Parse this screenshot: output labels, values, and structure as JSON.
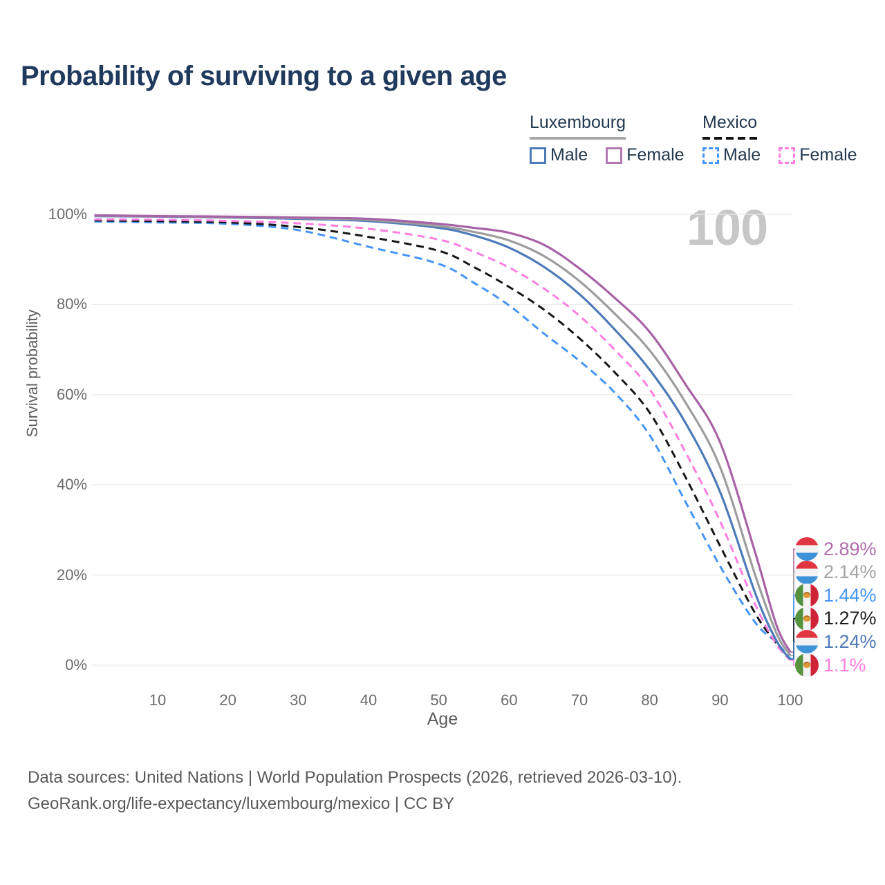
{
  "title": "Probability of surviving to a given age",
  "watermark": "100",
  "legend": {
    "groups": [
      {
        "label": "Luxembourg",
        "line_style": "solid",
        "underline_color": "#a8a8a8",
        "items": [
          {
            "label": "Male",
            "color": "#4d7ab8",
            "dashed": false
          },
          {
            "label": "Female",
            "color": "#b279b2",
            "dashed": false
          }
        ]
      },
      {
        "label": "Mexico",
        "line_style": "dashed",
        "underline_color": "#141414",
        "items": [
          {
            "label": "Male",
            "color": "#4595f7",
            "dashed": true
          },
          {
            "label": "Female",
            "color": "#ff7ee2",
            "dashed": true
          }
        ]
      }
    ]
  },
  "chart_data": {
    "type": "line",
    "title": "Probability of surviving to a given age",
    "xlabel": "Age",
    "ylabel": "Survival probability",
    "xlim": [
      1,
      100
    ],
    "ylim": [
      0,
      100
    ],
    "grid": "horizontal",
    "legend_position": "top-right",
    "x_ticks": [
      10,
      20,
      30,
      40,
      50,
      60,
      70,
      80,
      90,
      100
    ],
    "y_ticks": [
      {
        "value": 100,
        "label": "100%"
      },
      {
        "value": 80,
        "label": "80%"
      },
      {
        "value": 60,
        "label": "60%"
      },
      {
        "value": 40,
        "label": "40%"
      },
      {
        "value": 20,
        "label": "20%"
      },
      {
        "value": 0,
        "label": "0%"
      }
    ],
    "ages": [
      1,
      10,
      20,
      30,
      40,
      50,
      55,
      60,
      65,
      70,
      75,
      80,
      85,
      90,
      95,
      98,
      100
    ],
    "series": [
      {
        "name": "Luxembourg Female",
        "country": "Luxembourg",
        "sex": "Female",
        "color": "#a763a6",
        "dashed": false,
        "values": [
          99.8,
          99.6,
          99.5,
          99.3,
          99.0,
          97.9,
          97.0,
          95.9,
          93.2,
          88.0,
          81.5,
          73.9,
          62.5,
          49.5,
          25.0,
          9.0,
          2.89
        ]
      },
      {
        "name": "Luxembourg",
        "country": "Luxembourg",
        "sex": "Both",
        "color": "#9d9d9d",
        "dashed": false,
        "values": [
          99.7,
          99.55,
          99.4,
          99.15,
          98.75,
          97.4,
          96.1,
          94.2,
          90.7,
          85.2,
          78.0,
          69.8,
          58.5,
          44.0,
          20.0,
          7.2,
          2.14
        ]
      },
      {
        "name": "Luxembourg Male",
        "country": "Luxembourg",
        "sex": "Male",
        "color": "#4d7ab8",
        "dashed": false,
        "values": [
          99.6,
          99.5,
          99.3,
          99.0,
          98.5,
          97.0,
          95.3,
          92.6,
          88.3,
          82.3,
          74.5,
          65.5,
          54.0,
          38.5,
          16.0,
          5.5,
          1.24
        ]
      },
      {
        "name": "Mexico Female",
        "country": "Mexico",
        "sex": "Female",
        "color": "#ff7ee2",
        "dashed": true,
        "values": [
          98.9,
          98.8,
          98.55,
          98.0,
          96.8,
          94.4,
          91.7,
          88.2,
          83.5,
          77.5,
          70.0,
          61.2,
          47.5,
          32.0,
          13.5,
          4.7,
          1.1
        ]
      },
      {
        "name": "Mexico",
        "country": "Mexico",
        "sex": "Both",
        "color": "#161616",
        "dashed": true,
        "values": [
          98.65,
          98.5,
          98.2,
          97.2,
          95.0,
          91.9,
          88.3,
          83.9,
          78.8,
          72.5,
          65.0,
          56.0,
          42.0,
          26.5,
          11.5,
          4.9,
          1.27
        ]
      },
      {
        "name": "Mexico Male",
        "country": "Mexico",
        "sex": "Male",
        "color": "#4595f7",
        "dashed": true,
        "values": [
          98.4,
          98.2,
          97.9,
          96.5,
          92.8,
          89.0,
          84.8,
          79.8,
          73.5,
          67.5,
          60.5,
          51.0,
          36.5,
          22.0,
          9.5,
          5.1,
          1.44
        ]
      }
    ],
    "end_labels": [
      {
        "text": "2.89%",
        "flag": "luxembourg",
        "series_index": 0,
        "color": "#b06cac"
      },
      {
        "text": "2.14%",
        "flag": "luxembourg",
        "series_index": 1,
        "color": "#a3a3a3"
      },
      {
        "text": "1.44%",
        "flag": "mexico",
        "series_index": 5,
        "color": "#4595f7"
      },
      {
        "text": "1.27%",
        "flag": "mexico",
        "series_index": 4,
        "color": "#1c1c1c"
      },
      {
        "text": "1.24%",
        "flag": "luxembourg",
        "series_index": 2,
        "color": "#4d7ab8"
      },
      {
        "text": "1.1%",
        "flag": "mexico",
        "series_index": 3,
        "color": "#ff7ee2"
      }
    ]
  },
  "footer": {
    "line1": "Data sources: United Nations | World Population Prospects (2026, retrieved 2026-03-10).",
    "line2": "GeoRank.org/life-expectancy/luxembourg/mexico | CC BY"
  }
}
